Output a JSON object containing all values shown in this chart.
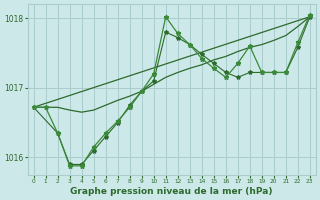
{
  "background_color": "#cce8e8",
  "grid_color": "#aacccc",
  "line_color_dark": "#2d6a2d",
  "line_color_medium": "#3a8a3a",
  "xlabel": "Graphe pression niveau de la mer (hPa)",
  "xlim": [
    -0.5,
    23.5
  ],
  "ylim": [
    1015.75,
    1018.2
  ],
  "yticks": [
    1016,
    1017,
    1018
  ],
  "xticks": [
    0,
    1,
    2,
    3,
    4,
    5,
    6,
    7,
    8,
    9,
    10,
    11,
    12,
    13,
    14,
    15,
    16,
    17,
    18,
    19,
    20,
    21,
    22,
    23
  ],
  "series_straight": [
    [
      0,
      1016.72
    ],
    [
      23,
      1018.02
    ]
  ],
  "series_smooth": [
    [
      0,
      1016.72
    ],
    [
      1,
      1016.72
    ],
    [
      2,
      1016.72
    ],
    [
      3,
      1016.68
    ],
    [
      4,
      1016.65
    ],
    [
      5,
      1016.68
    ],
    [
      6,
      1016.75
    ],
    [
      7,
      1016.82
    ],
    [
      8,
      1016.88
    ],
    [
      9,
      1016.95
    ],
    [
      10,
      1017.05
    ],
    [
      11,
      1017.15
    ],
    [
      12,
      1017.22
    ],
    [
      13,
      1017.28
    ],
    [
      14,
      1017.33
    ],
    [
      15,
      1017.4
    ],
    [
      16,
      1017.45
    ],
    [
      17,
      1017.52
    ],
    [
      18,
      1017.58
    ],
    [
      19,
      1017.62
    ],
    [
      20,
      1017.68
    ],
    [
      21,
      1017.75
    ],
    [
      22,
      1017.88
    ],
    [
      23,
      1018.02
    ]
  ],
  "series_volatile_x": [
    0,
    1,
    2,
    3,
    4,
    5,
    6,
    7,
    8,
    9,
    10,
    11,
    12,
    13,
    14,
    15,
    16,
    17,
    18,
    19,
    20,
    21,
    22,
    23
  ],
  "series_volatile_y": [
    1016.72,
    1016.72,
    1016.35,
    1015.88,
    1015.88,
    1016.15,
    1016.35,
    1016.52,
    1016.72,
    1016.95,
    1017.2,
    1018.02,
    1017.78,
    1017.62,
    1017.42,
    1017.28,
    1017.15,
    1017.35,
    1017.6,
    1017.22,
    1017.22,
    1017.22,
    1017.65,
    1018.05
  ],
  "series_mid_x": [
    0,
    2,
    3,
    4,
    5,
    6,
    7,
    8,
    9,
    10,
    11,
    12,
    13,
    14,
    15,
    16,
    17,
    18,
    19,
    20,
    21,
    22,
    23
  ],
  "series_mid_y": [
    1016.72,
    1016.35,
    1015.9,
    1015.9,
    1016.1,
    1016.3,
    1016.5,
    1016.75,
    1016.95,
    1017.1,
    1017.8,
    1017.72,
    1017.62,
    1017.48,
    1017.35,
    1017.22,
    1017.15,
    1017.22,
    1017.22,
    1017.22,
    1017.22,
    1017.58,
    1018.02
  ]
}
